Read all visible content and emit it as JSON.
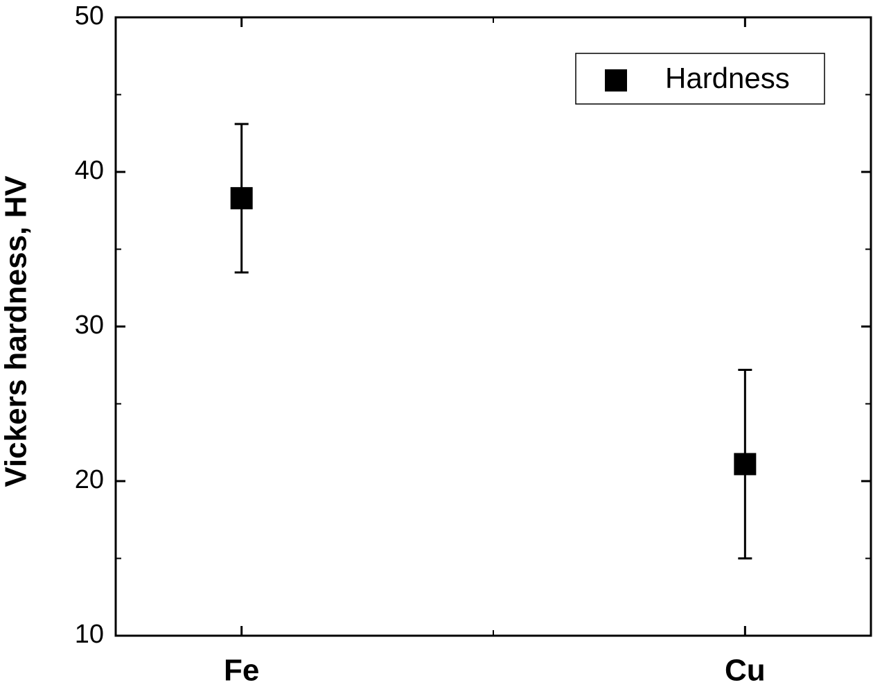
{
  "chart_data": {
    "type": "scatter",
    "y_label": "Vickers hardness, HV",
    "categories": [
      "Fe",
      "Cu"
    ],
    "series": [
      {
        "name": "Hardness",
        "color": "#000000",
        "values": [
          38.3,
          21.1
        ],
        "errors": [
          4.8,
          6.1
        ]
      }
    ],
    "ylim": [
      10,
      50
    ],
    "yticks": [
      10,
      20,
      30,
      40,
      50
    ],
    "legend": "upper right"
  }
}
